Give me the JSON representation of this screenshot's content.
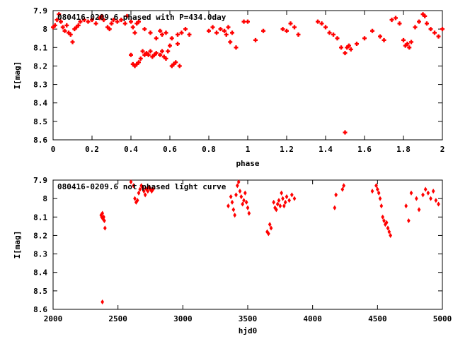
{
  "chart_data": [
    {
      "type": "scatter",
      "title": "080416-0209.6 phased with P=434.0day",
      "xlabel": "phase",
      "ylabel": "I[mag]",
      "xlim": [
        0,
        2
      ],
      "ylim": [
        8.6,
        7.9
      ],
      "y_inverted": true,
      "xticks": [
        0,
        0.2,
        0.4,
        0.6,
        0.8,
        1,
        1.2,
        1.4,
        1.6,
        1.8,
        2
      ],
      "xtick_labels": [
        "0",
        "0.2",
        "0.4",
        "0.6",
        "0.8",
        "1",
        "1.2",
        "1.4",
        "1.6",
        "1.8",
        "2"
      ],
      "yticks": [
        7.9,
        8.0,
        8.1,
        8.2,
        8.3,
        8.4,
        8.5,
        8.6
      ],
      "ytick_labels": [
        "7.9",
        "8",
        "8.1",
        "8.2",
        "8.3",
        "8.4",
        "8.5",
        "8.6"
      ],
      "marker_color": "#ff0000",
      "grid": false,
      "series": [
        {
          "points": [
            [
              0.0,
              7.99
            ],
            [
              0.01,
              7.98
            ],
            [
              0.02,
              7.95
            ],
            [
              0.03,
              7.92
            ],
            [
              0.04,
              7.96
            ],
            [
              0.05,
              7.99
            ],
            [
              0.06,
              8.01
            ],
            [
              0.07,
              7.98
            ],
            [
              0.08,
              8.02
            ],
            [
              0.09,
              8.03
            ],
            [
              0.1,
              8.07
            ],
            [
              0.11,
              8.0
            ],
            [
              0.12,
              7.99
            ],
            [
              0.13,
              7.98
            ],
            [
              0.14,
              7.96
            ],
            [
              0.16,
              7.95
            ],
            [
              0.18,
              7.96
            ],
            [
              0.2,
              7.95
            ],
            [
              0.22,
              7.97
            ],
            [
              0.24,
              7.94
            ],
            [
              0.25,
              7.93
            ],
            [
              0.26,
              7.95
            ],
            [
              0.28,
              7.99
            ],
            [
              0.29,
              8.0
            ],
            [
              0.3,
              7.97
            ],
            [
              0.31,
              7.95
            ],
            [
              0.33,
              7.96
            ],
            [
              0.35,
              7.95
            ],
            [
              0.37,
              7.97
            ],
            [
              0.38,
              7.93
            ],
            [
              0.4,
              7.96
            ],
            [
              0.41,
              7.99
            ],
            [
              0.42,
              8.02
            ],
            [
              0.43,
              7.97
            ],
            [
              0.44,
              7.96
            ],
            [
              0.4,
              8.14
            ],
            [
              0.41,
              8.19
            ],
            [
              0.42,
              8.2
            ],
            [
              0.43,
              8.19
            ],
            [
              0.44,
              8.18
            ],
            [
              0.45,
              8.16
            ],
            [
              0.46,
              8.12
            ],
            [
              0.47,
              8.14
            ],
            [
              0.48,
              8.13
            ],
            [
              0.49,
              8.14
            ],
            [
              0.5,
              8.12
            ],
            [
              0.51,
              8.15
            ],
            [
              0.52,
              8.14
            ],
            [
              0.53,
              8.13
            ],
            [
              0.55,
              8.14
            ],
            [
              0.56,
              8.12
            ],
            [
              0.57,
              8.15
            ],
            [
              0.58,
              8.16
            ],
            [
              0.59,
              8.12
            ],
            [
              0.6,
              8.09
            ],
            [
              0.61,
              8.2
            ],
            [
              0.62,
              8.19
            ],
            [
              0.63,
              8.18
            ],
            [
              0.64,
              8.08
            ],
            [
              0.65,
              8.2
            ],
            [
              0.47,
              8.0
            ],
            [
              0.5,
              8.02
            ],
            [
              0.53,
              8.05
            ],
            [
              0.55,
              8.01
            ],
            [
              0.56,
              8.03
            ],
            [
              0.58,
              8.02
            ],
            [
              0.61,
              8.05
            ],
            [
              0.64,
              8.03
            ],
            [
              0.66,
              8.02
            ],
            [
              0.68,
              8.0
            ],
            [
              0.7,
              8.03
            ],
            [
              0.8,
              8.01
            ],
            [
              0.82,
              7.99
            ],
            [
              0.84,
              8.02
            ],
            [
              0.86,
              8.0
            ],
            [
              0.88,
              8.01
            ],
            [
              0.89,
              8.03
            ],
            [
              0.9,
              7.99
            ],
            [
              0.91,
              8.07
            ],
            [
              0.92,
              8.02
            ],
            [
              0.94,
              8.1
            ],
            [
              0.98,
              7.96
            ],
            [
              1.0,
              7.96
            ],
            [
              1.04,
              8.06
            ],
            [
              1.08,
              8.01
            ],
            [
              1.18,
              8.0
            ],
            [
              1.2,
              8.01
            ],
            [
              1.22,
              7.97
            ],
            [
              1.24,
              7.99
            ],
            [
              1.26,
              8.03
            ],
            [
              1.36,
              7.96
            ],
            [
              1.38,
              7.97
            ],
            [
              1.4,
              7.99
            ],
            [
              1.42,
              8.02
            ],
            [
              1.44,
              8.03
            ],
            [
              1.46,
              8.05
            ],
            [
              1.48,
              8.1
            ],
            [
              1.5,
              8.13
            ],
            [
              1.51,
              8.1
            ],
            [
              1.52,
              8.09
            ],
            [
              1.53,
              8.11
            ],
            [
              1.56,
              8.08
            ],
            [
              1.6,
              8.05
            ],
            [
              1.64,
              8.01
            ],
            [
              1.68,
              8.04
            ],
            [
              1.7,
              8.06
            ],
            [
              1.74,
              7.95
            ],
            [
              1.76,
              7.94
            ],
            [
              1.78,
              7.97
            ],
            [
              1.8,
              8.06
            ],
            [
              1.81,
              8.09
            ],
            [
              1.82,
              8.08
            ],
            [
              1.83,
              8.1
            ],
            [
              1.84,
              8.07
            ],
            [
              1.86,
              7.99
            ],
            [
              1.88,
              7.96
            ],
            [
              1.9,
              7.92
            ],
            [
              1.91,
              7.93
            ],
            [
              1.92,
              7.97
            ],
            [
              1.94,
              8.0
            ],
            [
              1.96,
              8.02
            ],
            [
              1.98,
              8.04
            ],
            [
              2.0,
              8.0
            ],
            [
              1.5,
              8.56
            ]
          ]
        }
      ]
    },
    {
      "type": "scatter",
      "title": "080416-0209.6 not phased light curve",
      "xlabel": "hjd0",
      "ylabel": "I[mag]",
      "xlim": [
        2000,
        5000
      ],
      "ylim": [
        8.6,
        7.9
      ],
      "y_inverted": true,
      "xticks": [
        2000,
        2500,
        3000,
        3500,
        4000,
        4500,
        5000
      ],
      "xtick_labels": [
        "2000",
        "2500",
        "3000",
        "3500",
        "4000",
        "4500",
        "5000"
      ],
      "yticks": [
        7.9,
        8.0,
        8.1,
        8.2,
        8.3,
        8.4,
        8.5,
        8.6
      ],
      "ytick_labels": [
        "7.9",
        "8",
        "8.1",
        "8.2",
        "8.3",
        "8.4",
        "8.5",
        "8.6"
      ],
      "marker_color": "#ff0000",
      "grid": false,
      "series": [
        {
          "points": [
            [
              2370,
              8.09
            ],
            [
              2375,
              8.1
            ],
            [
              2380,
              8.08
            ],
            [
              2385,
              8.11
            ],
            [
              2390,
              8.1
            ],
            [
              2395,
              8.12
            ],
            [
              2400,
              8.16
            ],
            [
              2380,
              8.56
            ],
            [
              2600,
              7.91
            ],
            [
              2620,
              7.93
            ],
            [
              2630,
              8.0
            ],
            [
              2640,
              8.02
            ],
            [
              2650,
              8.01
            ],
            [
              2660,
              7.97
            ],
            [
              2670,
              7.95
            ],
            [
              2680,
              7.93
            ],
            [
              2690,
              7.94
            ],
            [
              2700,
              7.96
            ],
            [
              2710,
              7.98
            ],
            [
              2720,
              7.95
            ],
            [
              2730,
              7.96
            ],
            [
              2740,
              7.94
            ],
            [
              2750,
              7.95
            ],
            [
              2760,
              7.96
            ],
            [
              2770,
              7.95
            ],
            [
              3350,
              8.04
            ],
            [
              3370,
              7.99
            ],
            [
              3380,
              8.02
            ],
            [
              3390,
              8.06
            ],
            [
              3400,
              8.09
            ],
            [
              3410,
              7.98
            ],
            [
              3420,
              7.93
            ],
            [
              3430,
              7.91
            ],
            [
              3440,
              7.96
            ],
            [
              3450,
              7.99
            ],
            [
              3460,
              8.03
            ],
            [
              3470,
              8.01
            ],
            [
              3480,
              7.97
            ],
            [
              3490,
              8.02
            ],
            [
              3500,
              8.05
            ],
            [
              3510,
              8.08
            ],
            [
              3650,
              8.18
            ],
            [
              3660,
              8.19
            ],
            [
              3670,
              8.14
            ],
            [
              3680,
              8.16
            ],
            [
              3700,
              8.02
            ],
            [
              3710,
              8.05
            ],
            [
              3720,
              8.06
            ],
            [
              3730,
              8.03
            ],
            [
              3740,
              8.01
            ],
            [
              3750,
              8.04
            ],
            [
              3760,
              7.97
            ],
            [
              3770,
              8.0
            ],
            [
              3780,
              8.04
            ],
            [
              3790,
              8.02
            ],
            [
              3800,
              7.99
            ],
            [
              3820,
              8.01
            ],
            [
              3840,
              7.98
            ],
            [
              3860,
              8.0
            ],
            [
              4170,
              8.05
            ],
            [
              4180,
              7.98
            ],
            [
              4230,
              7.95
            ],
            [
              4240,
              7.93
            ],
            [
              4460,
              7.96
            ],
            [
              4490,
              7.93
            ],
            [
              4500,
              7.95
            ],
            [
              4510,
              7.97
            ],
            [
              4520,
              8.0
            ],
            [
              4530,
              8.04
            ],
            [
              4540,
              8.1
            ],
            [
              4550,
              8.12
            ],
            [
              4560,
              8.14
            ],
            [
              4570,
              8.13
            ],
            [
              4580,
              8.16
            ],
            [
              4590,
              8.18
            ],
            [
              4600,
              8.2
            ],
            [
              4720,
              8.04
            ],
            [
              4740,
              8.12
            ],
            [
              4760,
              7.97
            ],
            [
              4800,
              8.0
            ],
            [
              4820,
              8.06
            ],
            [
              4850,
              7.98
            ],
            [
              4870,
              7.95
            ],
            [
              4890,
              7.97
            ],
            [
              4910,
              8.0
            ],
            [
              4930,
              7.96
            ],
            [
              4950,
              8.01
            ],
            [
              4970,
              8.03
            ]
          ]
        }
      ]
    }
  ]
}
